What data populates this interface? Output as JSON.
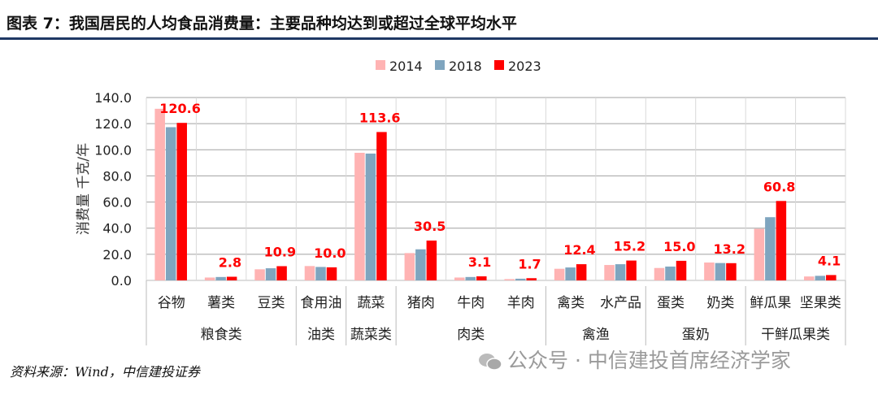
{
  "title": "图表 7：我国居民的人均食品消费量：主要品种均达到或超过全球平均水平",
  "source": "资料来源：Wind，中信建投证券",
  "watermark": "公众号 · 中信建投首席经济学家",
  "chart_data": {
    "type": "bar",
    "title": "",
    "ylabel": "消费量 千克/年",
    "ylim": [
      0,
      140
    ],
    "yticks": [
      "0.0",
      "20.0",
      "40.0",
      "60.0",
      "80.0",
      "100.0",
      "120.0",
      "140.0"
    ],
    "grid": true,
    "legend_position": "top",
    "categories": [
      "谷物",
      "薯类",
      "豆类",
      "食用油",
      "蔬菜",
      "猪肉",
      "牛肉",
      "羊肉",
      "禽类",
      "水产品",
      "蛋类",
      "奶类",
      "鲜瓜果",
      "坚果类"
    ],
    "groups": [
      {
        "label": "粮食类",
        "count": 3
      },
      {
        "label": "油类",
        "count": 1
      },
      {
        "label": "蔬菜类",
        "count": 1
      },
      {
        "label": "肉类",
        "count": 3
      },
      {
        "label": "禽渔",
        "count": 2
      },
      {
        "label": "蛋奶",
        "count": 2
      },
      {
        "label": "干鲜瓜果类",
        "count": 2
      }
    ],
    "series": [
      {
        "name": "2014",
        "color": "#ffb3b3",
        "values": [
          131.4,
          2.2,
          8.5,
          11.0,
          97.7,
          20.9,
          2.2,
          1.0,
          8.9,
          11.8,
          9.5,
          13.7,
          39.5,
          3.0
        ]
      },
      {
        "name": "2018",
        "color": "#7fa5bf",
        "values": [
          117.3,
          2.6,
          9.3,
          10.3,
          97.1,
          23.8,
          2.6,
          1.3,
          9.9,
          12.4,
          10.6,
          13.3,
          48.4,
          3.5
        ]
      },
      {
        "name": "2023",
        "color": "#ff0000",
        "values": [
          120.6,
          2.8,
          10.9,
          10.0,
          113.6,
          30.5,
          3.1,
          1.7,
          12.4,
          15.2,
          15.0,
          13.2,
          60.8,
          4.1
        ]
      }
    ],
    "data_labels": [
      "120.6",
      "2.8",
      "10.9",
      "10.0",
      "113.6",
      "30.5",
      "3.1",
      "1.7",
      "12.4",
      "15.2",
      "15.0",
      "13.2",
      "60.8",
      "4.1"
    ],
    "data_label_series": "2023"
  }
}
